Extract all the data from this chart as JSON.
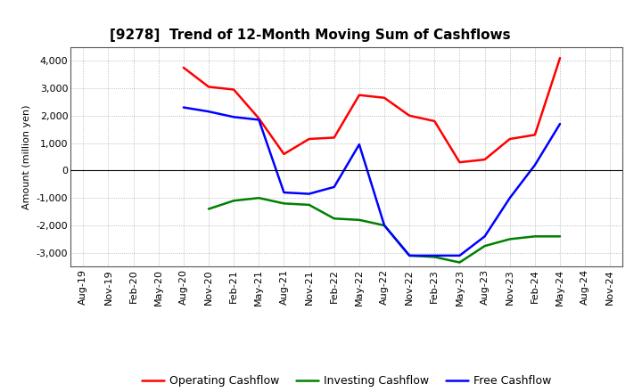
{
  "title": "[9278]  Trend of 12-Month Moving Sum of Cashflows",
  "ylabel": "Amount (million yen)",
  "x_labels": [
    "Aug-19",
    "Nov-19",
    "Feb-20",
    "May-20",
    "Aug-20",
    "Nov-20",
    "Feb-21",
    "May-21",
    "Aug-21",
    "Nov-21",
    "Feb-22",
    "May-22",
    "Aug-22",
    "Nov-22",
    "Feb-23",
    "May-23",
    "Aug-23",
    "Nov-23",
    "Feb-24",
    "May-24",
    "Aug-24",
    "Nov-24"
  ],
  "operating": [
    null,
    null,
    null,
    null,
    3750,
    3050,
    2950,
    1900,
    600,
    1150,
    1200,
    2750,
    2650,
    2000,
    1800,
    300,
    400,
    1150,
    1300,
    4100,
    null,
    null
  ],
  "investing": [
    null,
    null,
    null,
    null,
    null,
    -1400,
    -1100,
    -1000,
    -1200,
    -1250,
    -1750,
    -1800,
    -2000,
    -3100,
    -3150,
    -3350,
    -2750,
    -2500,
    -2400,
    -2400,
    null,
    null
  ],
  "free": [
    null,
    null,
    null,
    null,
    2300,
    2150,
    1950,
    1850,
    -800,
    -850,
    -600,
    950,
    -2000,
    -3100,
    -3100,
    -3100,
    -2400,
    -1000,
    200,
    1700,
    null,
    null
  ],
  "operating_color": "#FF0000",
  "investing_color": "#008000",
  "free_color": "#0000FF",
  "ylim": [
    -3500,
    4500
  ],
  "yticks": [
    -3000,
    -2000,
    -1000,
    0,
    1000,
    2000,
    3000,
    4000
  ],
  "background_color": "#FFFFFF",
  "grid_color": "#AAAAAA",
  "title_fontsize": 11,
  "legend_fontsize": 9,
  "axis_fontsize": 8
}
